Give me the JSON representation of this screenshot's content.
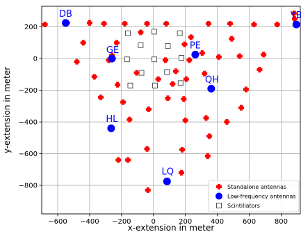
{
  "chart_data": {
    "type": "scatter",
    "xlabel": "x-extension in meter",
    "ylabel": "y-extension in meter",
    "xlim": [
      -700,
      920
    ],
    "ylim": [
      -980,
      330
    ],
    "grid": true,
    "legend_position": "bottom-right",
    "x_ticks": [
      -600,
      -400,
      -200,
      0,
      200,
      400,
      600,
      800
    ],
    "y_ticks": [
      -800,
      -600,
      -400,
      -200,
      0,
      200
    ],
    "colors": {
      "standalone": "#ff0000",
      "lowfreq": "#0000ff",
      "scint": "#444444",
      "label": "#0000ff"
    },
    "series": [
      {
        "name": "Standalone antennas",
        "marker": "cross-icon",
        "points": [
          [
            -680,
            215
          ],
          [
            -540,
            225
          ],
          [
            -440,
            100
          ],
          [
            -400,
            225
          ],
          [
            -480,
            -20
          ],
          [
            -370,
            -115
          ],
          [
            -330,
            -245
          ],
          [
            -310,
            220
          ],
          [
            -280,
            -10
          ],
          [
            -260,
            20
          ],
          [
            -230,
            100
          ],
          [
            -225,
            -165
          ],
          [
            -180,
            220
          ],
          [
            -190,
            -275
          ],
          [
            -150,
            -385
          ],
          [
            -105,
            -90
          ],
          [
            -80,
            165
          ],
          [
            -40,
            220
          ],
          [
            -30,
            -320
          ],
          [
            -40,
            -570
          ],
          [
            -160,
            -640
          ],
          [
            -220,
            -640
          ],
          [
            -35,
            -830
          ],
          [
            30,
            -130
          ],
          [
            75,
            -10
          ],
          [
            80,
            220
          ],
          [
            90,
            -250
          ],
          [
            120,
            -160
          ],
          [
            140,
            -80
          ],
          [
            175,
            -720
          ],
          [
            180,
            -575
          ],
          [
            190,
            -255
          ],
          [
            195,
            90
          ],
          [
            200,
            -390
          ],
          [
            205,
            -130
          ],
          [
            225,
            -10
          ],
          [
            235,
            135
          ],
          [
            305,
            35
          ],
          [
            320,
            -95
          ],
          [
            330,
            -375
          ],
          [
            340,
            -615
          ],
          [
            350,
            -490
          ],
          [
            345,
            220
          ],
          [
            410,
            10
          ],
          [
            460,
            -400
          ],
          [
            480,
            220
          ],
          [
            490,
            125
          ],
          [
            540,
            15
          ],
          [
            550,
            -310
          ],
          [
            580,
            -195
          ],
          [
            630,
            215
          ],
          [
            665,
            -70
          ],
          [
            690,
            25
          ],
          [
            775,
            215
          ],
          [
            880,
            285
          ],
          [
            885,
            250
          ]
        ]
      },
      {
        "name": "Low-frequency antennas",
        "marker": "circle-icon",
        "points": [
          {
            "x": -550,
            "y": 225,
            "label": "DB"
          },
          {
            "x": -260,
            "y": 0,
            "label": "GE"
          },
          {
            "x": -265,
            "y": -440,
            "label": "HL"
          },
          {
            "x": 262,
            "y": 25,
            "label": "PE"
          },
          {
            "x": 362,
            "y": -190,
            "label": "QH"
          },
          {
            "x": 85,
            "y": -775,
            "label": "LQ"
          },
          {
            "x": 895,
            "y": 215,
            "label": "YB"
          }
        ]
      },
      {
        "name": "Scintillators",
        "marker": "square-icon",
        "points": [
          [
            -160,
            160
          ],
          [
            -80,
            85
          ],
          [
            -75,
            -90
          ],
          [
            -165,
            -5
          ],
          [
            -145,
            -170
          ],
          [
            5,
            170
          ],
          [
            5,
            -5
          ],
          [
            10,
            -170
          ],
          [
            90,
            80
          ],
          [
            85,
            -85
          ],
          [
            165,
            160
          ],
          [
            175,
            5
          ],
          [
            170,
            -155
          ]
        ]
      }
    ]
  }
}
